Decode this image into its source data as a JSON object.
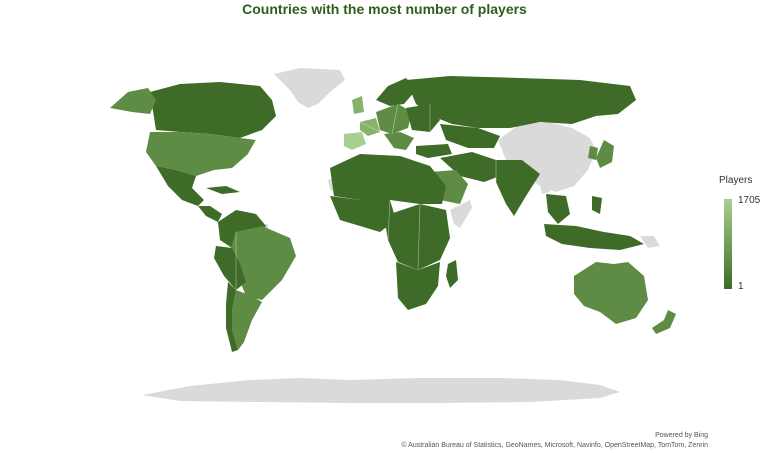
{
  "title": "Countries with the most number of players",
  "legend": {
    "title": "Players",
    "max_label": "1705",
    "min_label": "1",
    "max": 1705,
    "min": 1,
    "max_color": "#a7cf91",
    "min_color": "#3e6b27"
  },
  "credits": {
    "powered_by": "Powered by Bing",
    "attribution": "© Australian Bureau of Statistics, GeoNames, Microsoft, Navinfo, OpenStreetMap, TomTom, Zenrin"
  },
  "colors": {
    "title": "#2f5e1b",
    "no_data": "#dadada"
  }
}
